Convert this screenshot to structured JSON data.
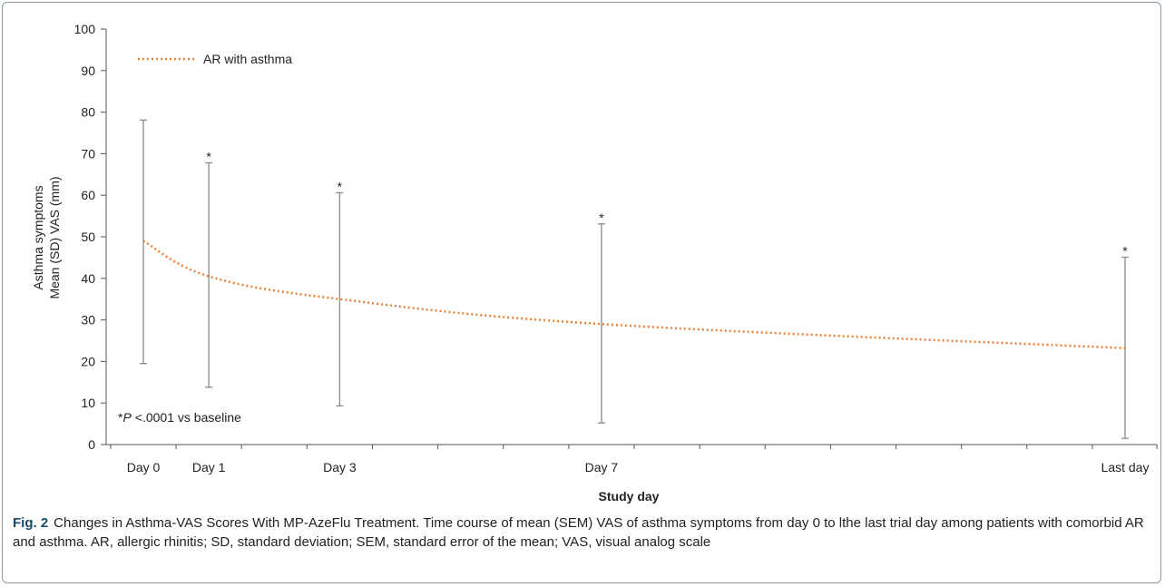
{
  "chart_data": {
    "type": "line",
    "categories": [
      "Day 0",
      "Day 1",
      "Day 3",
      "Day 7",
      "Last day"
    ],
    "x_positions": [
      0,
      1,
      3,
      7,
      15
    ],
    "series": [
      {
        "name": "AR with asthma",
        "values": [
          49,
          40.5,
          35,
          29,
          23.2
        ],
        "error_low": [
          19.5,
          13.8,
          9.3,
          5.2,
          1.5
        ],
        "error_high": [
          78.1,
          67.8,
          60.6,
          53.1,
          45.1
        ],
        "significant": [
          false,
          true,
          true,
          true,
          true
        ],
        "color": "#e8823a",
        "line_style": "dotted"
      }
    ],
    "ylabel_line1": "Asthma symptoms",
    "ylabel_line2": "Mean (SD) VAS (mm)",
    "xlabel": "Study day",
    "ylim": [
      0,
      100
    ],
    "yticks": [
      0,
      10,
      20,
      30,
      40,
      50,
      60,
      70,
      80,
      90,
      100
    ],
    "xlim": [
      0,
      15
    ],
    "significance_marker": "*",
    "annotation_p": "P",
    "annotation_rest": "<.0001 vs baseline",
    "legend_position": "top-left",
    "grid": false
  },
  "caption": {
    "label": "Fig. 2",
    "text": "Changes in Asthma-VAS Scores With MP-AzeFlu Treatment. Time course of mean (SEM) VAS of asthma symptoms from day 0 to lthe last trial day among patients with comorbid AR and asthma. AR, allergic rhinitis; SD, standard deviation; SEM, standard error of the mean; VAS, visual analog scale"
  }
}
